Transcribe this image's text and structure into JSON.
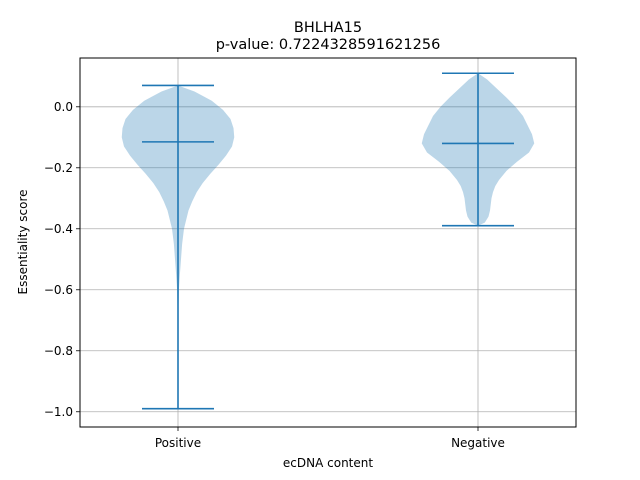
{
  "chart_data": {
    "type": "violin",
    "title": "BHLHA15",
    "subtitle": "p-value: 0.7224328591621256",
    "xlabel": "ecDNA content",
    "ylabel": "Essentiality score",
    "categories": [
      "Positive",
      "Negative"
    ],
    "ylim": [
      -1.05,
      0.16
    ],
    "yticks": [
      0.0,
      -0.2,
      -0.4,
      -0.6,
      -0.8,
      -1.0
    ],
    "ytick_labels": [
      "0.0",
      "−0.2",
      "−0.4",
      "−0.6",
      "−0.8",
      "−1.0"
    ],
    "grid": true,
    "colors": {
      "body": "#1f77b4",
      "body_alpha": 0.3,
      "lines": "#1f77b4"
    },
    "violins": [
      {
        "name": "Positive",
        "min": -0.99,
        "max": 0.07,
        "median": -0.115,
        "profile": [
          [
            0.07,
            0.0
          ],
          [
            0.05,
            0.22
          ],
          [
            0.02,
            0.45
          ],
          [
            -0.01,
            0.6
          ],
          [
            -0.04,
            0.7
          ],
          [
            -0.07,
            0.74
          ],
          [
            -0.1,
            0.75
          ],
          [
            -0.13,
            0.72
          ],
          [
            -0.16,
            0.64
          ],
          [
            -0.19,
            0.54
          ],
          [
            -0.22,
            0.43
          ],
          [
            -0.25,
            0.33
          ],
          [
            -0.28,
            0.25
          ],
          [
            -0.31,
            0.19
          ],
          [
            -0.34,
            0.14
          ],
          [
            -0.37,
            0.11
          ],
          [
            -0.4,
            0.08
          ],
          [
            -0.45,
            0.055
          ],
          [
            -0.5,
            0.04
          ],
          [
            -0.55,
            0.025
          ],
          [
            -0.6,
            0.012
          ],
          [
            -0.65,
            0.007
          ],
          [
            -0.7,
            0.005
          ],
          [
            -0.8,
            0.004
          ],
          [
            -0.9,
            0.004
          ],
          [
            -0.97,
            0.003
          ],
          [
            -0.99,
            0.0
          ]
        ]
      },
      {
        "name": "Negative",
        "min": -0.39,
        "max": 0.11,
        "median": -0.12,
        "profile": [
          [
            0.11,
            0.0
          ],
          [
            0.09,
            0.12
          ],
          [
            0.06,
            0.25
          ],
          [
            0.03,
            0.38
          ],
          [
            0.0,
            0.5
          ],
          [
            -0.03,
            0.6
          ],
          [
            -0.06,
            0.66
          ],
          [
            -0.09,
            0.72
          ],
          [
            -0.12,
            0.75
          ],
          [
            -0.15,
            0.68
          ],
          [
            -0.18,
            0.52
          ],
          [
            -0.21,
            0.38
          ],
          [
            -0.24,
            0.28
          ],
          [
            -0.26,
            0.23
          ],
          [
            -0.28,
            0.2
          ],
          [
            -0.3,
            0.18
          ],
          [
            -0.32,
            0.17
          ],
          [
            -0.34,
            0.16
          ],
          [
            -0.36,
            0.14
          ],
          [
            -0.38,
            0.09
          ],
          [
            -0.39,
            0.0
          ]
        ]
      }
    ]
  }
}
